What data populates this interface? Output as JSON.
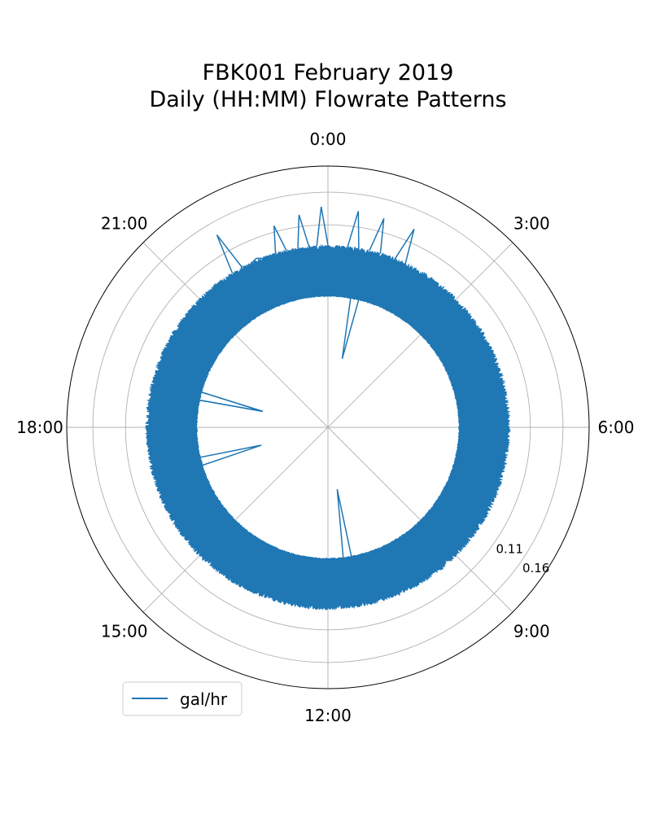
{
  "chart_data": {
    "type": "line",
    "projection": "polar",
    "title_lines": [
      "FBK001 February 2019",
      "Daily (HH:MM) Flowrate Patterns"
    ],
    "theta_tick_labels": [
      "0:00",
      "3:00",
      "6:00",
      "9:00",
      "12:00",
      "15:00",
      "18:00",
      "21:00"
    ],
    "theta_tick_hours": [
      0,
      3,
      6,
      9,
      12,
      15,
      18,
      21
    ],
    "theta_direction": "clockwise",
    "theta_zero": "top",
    "r_tick_values": [
      0.11,
      0.16
    ],
    "r_tick_labels": [
      "0.11",
      "0.16"
    ],
    "r_grid_circles": [
      0.01,
      0.06,
      0.11,
      0.16
    ],
    "rlim": [
      -0.2,
      0.2
    ],
    "grid": true,
    "legend": {
      "entries": [
        "gal/hr"
      ],
      "placement": "lower-left"
    },
    "series": [
      {
        "name": "gal/hr",
        "color": "#1f77b4",
        "typical_range": [
          0.0,
          0.0795
        ],
        "spikes": [
          {
            "time": "22:00",
            "value": 0.1402
          },
          {
            "time": "22:28",
            "value": 0.081
          },
          {
            "time": "23:00",
            "value": 0.1193
          },
          {
            "time": "23:29",
            "value": 0.1283
          },
          {
            "time": "23:53",
            "value": 0.1379
          },
          {
            "time": "0:32",
            "value": 0.1342
          },
          {
            "time": "1:00",
            "value": 0.131
          },
          {
            "time": "1:34",
            "value": 0.131
          },
          {
            "time": "17:00",
            "value": -0.0945
          },
          {
            "time": "18:55",
            "value": -0.0972
          },
          {
            "time": "11:26",
            "value": -0.1041
          },
          {
            "time": "0:47",
            "value": -0.0928
          },
          {
            "time": "18:55",
            "value": -0.0972
          }
        ]
      }
    ],
    "colors": {
      "line": "#1f77b4",
      "grid": "#b0b0b0",
      "frame": "#000000"
    }
  }
}
